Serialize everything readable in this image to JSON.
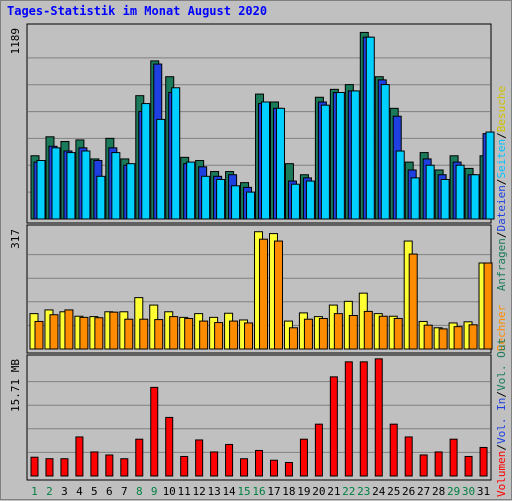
{
  "title": "Tages-Statistik im Monat August 2020",
  "chart_data": [
    {
      "type": "bar",
      "name": "requests-panel",
      "ymax_label": "1189",
      "ylim": [
        0,
        1189
      ],
      "categories": [
        "1",
        "2",
        "3",
        "4",
        "5",
        "6",
        "7",
        "8",
        "9",
        "10",
        "11",
        "12",
        "13",
        "14",
        "15",
        "16",
        "17",
        "18",
        "19",
        "20",
        "21",
        "22",
        "23",
        "24",
        "25",
        "26",
        "27",
        "28",
        "29",
        "30",
        "31"
      ],
      "weekend_days": [
        "1",
        "2",
        "8",
        "9",
        "15",
        "16",
        "22",
        "23",
        "29",
        "30"
      ],
      "series": [
        {
          "name": "Anfragen",
          "color": "#1a7a5a",
          "values": [
            400,
            520,
            490,
            500,
            380,
            510,
            380,
            780,
            1000,
            900,
            390,
            370,
            300,
            300,
            230,
            790,
            740,
            350,
            280,
            770,
            820,
            850,
            1180,
            900,
            700,
            360,
            420,
            310,
            400,
            320,
            400
          ]
        },
        {
          "name": "Dateien",
          "color": "#1e40e0",
          "values": [
            360,
            460,
            430,
            450,
            370,
            450,
            340,
            680,
            980,
            800,
            350,
            330,
            270,
            280,
            200,
            730,
            700,
            240,
            260,
            740,
            800,
            810,
            1150,
            880,
            650,
            310,
            380,
            280,
            360,
            280,
            540
          ]
        },
        {
          "name": "Seiten",
          "color": "#00d0ff",
          "values": [
            370,
            450,
            420,
            430,
            270,
            420,
            350,
            730,
            630,
            830,
            360,
            270,
            250,
            210,
            170,
            740,
            700,
            220,
            240,
            720,
            800,
            810,
            1150,
            850,
            430,
            260,
            340,
            250,
            340,
            280,
            550
          ]
        }
      ],
      "legend": [
        "Anfragen",
        "/",
        "Dateien",
        "/",
        "Seiten",
        "/",
        "Besuche"
      ]
    },
    {
      "type": "bar",
      "name": "visits-panel",
      "ymax_label": "317",
      "ylim": [
        0,
        317
      ],
      "series": [
        {
          "name": "Besuche",
          "color": "#ffff33",
          "values": [
            95,
            105,
            100,
            88,
            87,
            100,
            100,
            138,
            118,
            100,
            85,
            95,
            85,
            96,
            78,
            315,
            310,
            75,
            97,
            87,
            118,
            128,
            150,
            95,
            88,
            290,
            74,
            57,
            70,
            73,
            231
          ]
        },
        {
          "name": "Rechner",
          "color": "#ff8c00",
          "values": [
            74,
            92,
            105,
            85,
            84,
            99,
            80,
            80,
            79,
            87,
            82,
            75,
            71,
            75,
            70,
            295,
            290,
            57,
            80,
            82,
            95,
            90,
            101,
            88,
            82,
            255,
            64,
            54,
            60,
            65,
            231
          ]
        }
      ],
      "legend": [
        "Rechner",
        "/",
        "Besuche"
      ]
    },
    {
      "type": "bar",
      "name": "volume-panel",
      "ymax_label": "15.71 MB",
      "ylim": [
        0,
        15.71
      ],
      "series": [
        {
          "name": "Volumen",
          "color": "#ff0000",
          "values": [
            2.5,
            2.3,
            2.3,
            5.2,
            3.2,
            2.8,
            2.3,
            4.9,
            11.8,
            7.8,
            2.6,
            4.8,
            3.2,
            4.2,
            2.3,
            3.4,
            2.1,
            1.8,
            4.9,
            6.9,
            13.2,
            15.2,
            15.2,
            15.6,
            6.9,
            5.2,
            2.8,
            3.2,
            4.9,
            2.6,
            3.8
          ]
        }
      ],
      "legend": [
        "Volumen",
        "/",
        "Vol. In",
        "/",
        "Vol. Out"
      ]
    }
  ],
  "legend_colors": {
    "Anfragen": "#1a7a5a",
    "Dateien": "#1e40e0",
    "Seiten": "#00c0ff",
    "Besuche": "#d0c000",
    "Rechner": "#ff8c00",
    "Volumen": "#ff0000",
    "Vol. In": "#1e40e0",
    "Vol. Out": "#1a7a5a",
    "slash": "#000000",
    "weekend_label": "#008040",
    "weekday_label": "#000000"
  }
}
